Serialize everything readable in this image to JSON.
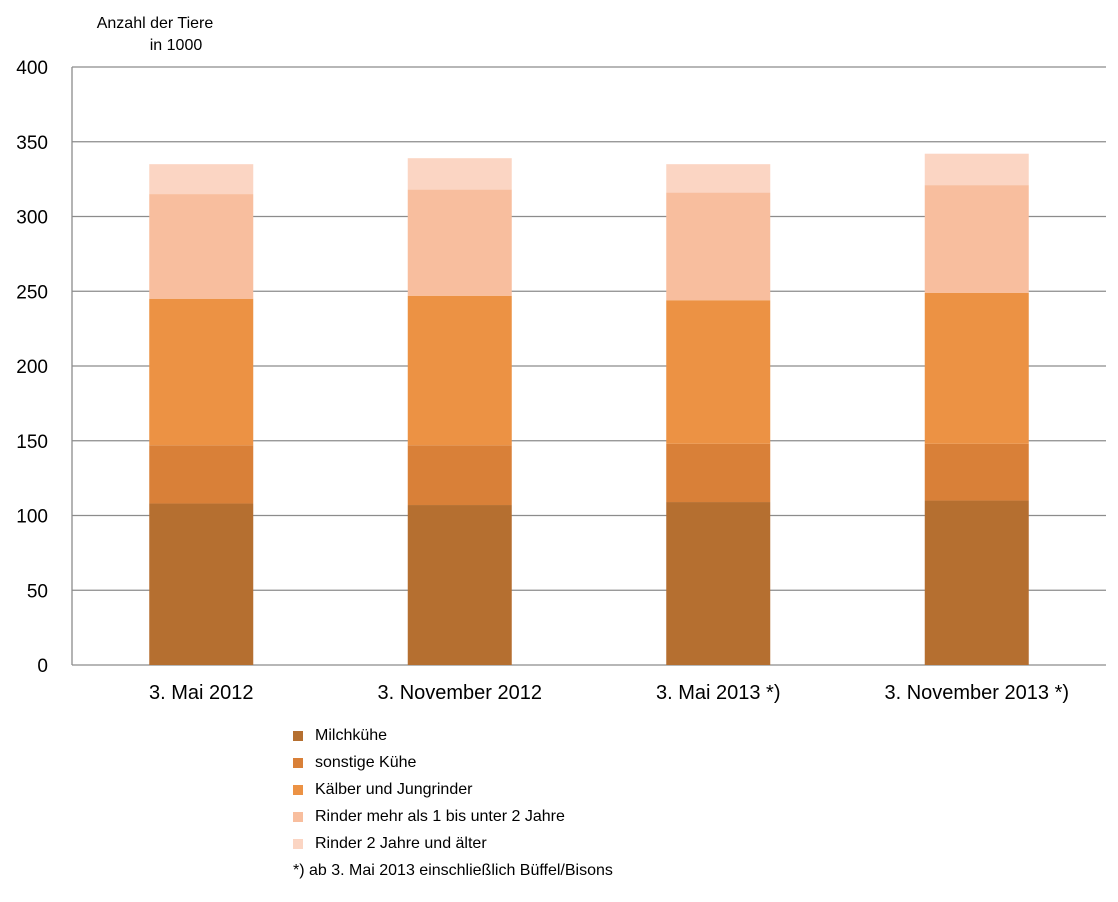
{
  "chart_data": {
    "type": "bar",
    "stacked": true,
    "ylabel_lines": [
      "Anzahl der Tiere",
      "in 1000"
    ],
    "ylim": [
      0,
      400
    ],
    "yticks": [
      0,
      50,
      100,
      150,
      200,
      250,
      300,
      350,
      400
    ],
    "grid": true,
    "legend_position": "bottom",
    "categories": [
      "3. Mai 2012",
      "3. November 2012",
      "3. Mai 2013 *)",
      "3. November 2013 *)"
    ],
    "series": [
      {
        "name": "Milchkühe",
        "color": "#B56F30",
        "values": [
          108,
          107,
          109,
          110
        ]
      },
      {
        "name": "sonstige Kühe",
        "color": "#D98038",
        "values": [
          39,
          40,
          39,
          38
        ]
      },
      {
        "name": "Kälber und Jungrinder",
        "color": "#EC9244",
        "values": [
          98,
          100,
          96,
          101
        ]
      },
      {
        "name": "Rinder mehr als 1 bis unter 2 Jahre",
        "color": "#F8BE9E",
        "values": [
          70,
          71,
          72,
          72
        ]
      },
      {
        "name": "Rinder 2 Jahre und älter",
        "color": "#FBD5C3",
        "values": [
          20,
          21,
          19,
          21
        ]
      }
    ],
    "footnote": "*)  ab 3. Mai 2013 einschließlich Büffel/Bisons"
  }
}
